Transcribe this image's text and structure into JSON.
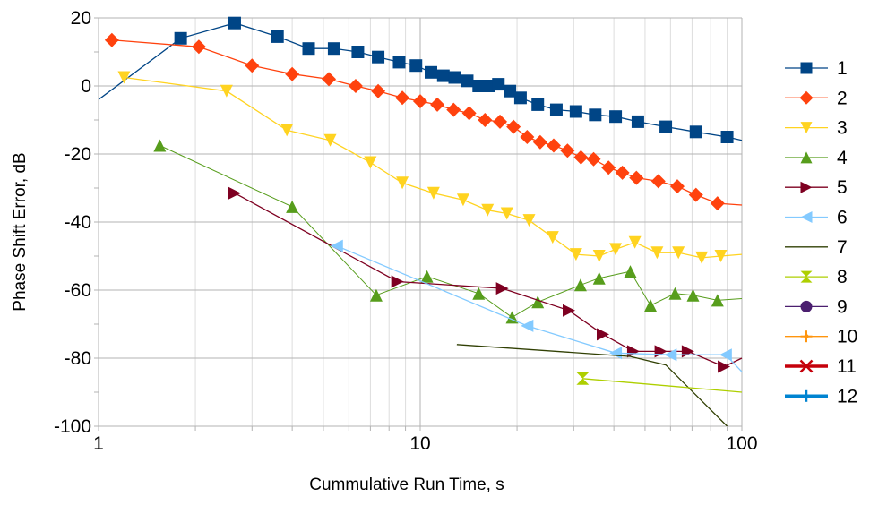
{
  "chart_data": {
    "type": "line",
    "title": "",
    "xlabel": "Cummulative Run Time, s",
    "ylabel": "Phase Shift Error, dB",
    "xscale": "log",
    "xlim": [
      1,
      100
    ],
    "ylim": [
      -100,
      20
    ],
    "xticks": [
      {
        "value": 1,
        "label": "1"
      },
      {
        "value": 10,
        "label": "10"
      },
      {
        "value": 100,
        "label": "100"
      }
    ],
    "yticks": [
      {
        "value": 20,
        "label": "20"
      },
      {
        "value": 0,
        "label": "0"
      },
      {
        "value": -20,
        "label": "-20"
      },
      {
        "value": -40,
        "label": "-40"
      },
      {
        "value": -60,
        "label": "-60"
      },
      {
        "value": -80,
        "label": "-80"
      },
      {
        "value": -100,
        "label": "-100"
      }
    ],
    "grid": true,
    "legend_position": "right",
    "series": [
      {
        "name": "1",
        "color": "#004586",
        "marker": "square",
        "lineWidth": 1.3,
        "x": [
          1.0,
          1.8,
          2.65,
          3.6,
          4.5,
          5.4,
          6.4,
          7.4,
          8.6,
          9.7,
          10.8,
          11.8,
          12.8,
          14.0,
          15.2,
          16.3,
          17.5,
          19.0,
          20.5,
          23.2,
          26.5,
          30.5,
          35.0,
          40.5,
          47.5,
          58.0,
          72.0,
          90.0,
          100.0
        ],
        "y": [
          -4.0,
          14.0,
          18.5,
          14.5,
          11.0,
          11.0,
          10.0,
          8.5,
          7.0,
          6.0,
          4.0,
          3.0,
          2.5,
          1.5,
          0.0,
          0.0,
          0.5,
          -1.5,
          -3.5,
          -5.5,
          -7.0,
          -7.5,
          -8.5,
          -9.0,
          -10.5,
          -12.0,
          -13.5,
          -15.0,
          -16.0
        ]
      },
      {
        "name": "2",
        "color": "#ff420e",
        "marker": "diamond",
        "lineWidth": 1.3,
        "x": [
          1.1,
          2.05,
          3.0,
          4.0,
          5.2,
          6.3,
          7.4,
          8.8,
          10.0,
          11.3,
          12.7,
          14.2,
          15.9,
          17.7,
          19.5,
          21.5,
          23.6,
          26.0,
          28.7,
          31.6,
          34.6,
          38.5,
          42.5,
          47.0,
          55.0,
          63.0,
          72.0,
          84.0,
          100.0
        ],
        "y": [
          13.5,
          11.5,
          6.0,
          3.5,
          2.0,
          0.0,
          -1.5,
          -3.5,
          -4.5,
          -5.5,
          -7.0,
          -8.0,
          -10.0,
          -10.5,
          -12.0,
          -15.0,
          -16.5,
          -17.5,
          -19.0,
          -21.0,
          -21.5,
          -24.0,
          -25.5,
          -27.0,
          -28.0,
          -29.5,
          -32.0,
          -34.5,
          -35.0
        ]
      },
      {
        "name": "3",
        "color": "#ffd320",
        "marker": "triangle-down",
        "lineWidth": 1.3,
        "x": [
          1.2,
          2.5,
          3.85,
          5.25,
          7.0,
          8.8,
          11.0,
          13.6,
          16.2,
          18.6,
          21.8,
          25.8,
          30.5,
          36.0,
          40.5,
          46.5,
          54.5,
          63.5,
          75.0,
          86.0,
          100.0
        ],
        "y": [
          2.5,
          -1.5,
          -13.0,
          -16.0,
          -22.5,
          -28.5,
          -31.5,
          -33.5,
          -36.5,
          -37.5,
          -39.5,
          -44.5,
          -49.5,
          -50.0,
          -48.0,
          -46.0,
          -49.0,
          -49.0,
          -50.5,
          -50.0,
          -49.5
        ]
      },
      {
        "name": "4",
        "color": "#579d1c",
        "marker": "triangle-up",
        "lineWidth": 1.0,
        "x": [
          1.55,
          4.0,
          7.3,
          10.5,
          15.2,
          19.3,
          23.2,
          31.5,
          36.0,
          45.0,
          52.0,
          62.0,
          70.5,
          84.0,
          100.0
        ],
        "y": [
          -17.5,
          -35.5,
          -61.5,
          -56.0,
          -61.0,
          -68.0,
          -63.5,
          -58.5,
          -56.5,
          -54.5,
          -64.5,
          -61.0,
          -61.5,
          -63.0,
          -62.5
        ]
      },
      {
        "name": "5",
        "color": "#7e0021",
        "marker": "triangle-right",
        "lineWidth": 1.3,
        "x": [
          2.65,
          8.5,
          18.0,
          29.0,
          37.0,
          46.0,
          56.0,
          68.0,
          88.0,
          100.0
        ],
        "y": [
          -31.5,
          -57.5,
          -59.5,
          -66.0,
          -73.0,
          -78.0,
          -78.0,
          -78.0,
          -82.5,
          -80.0
        ]
      },
      {
        "name": "6",
        "color": "#83caff",
        "marker": "triangle-left",
        "lineWidth": 1.3,
        "x": [
          5.5,
          21.5,
          40.5,
          60.0,
          89.0,
          100.0
        ],
        "y": [
          -47.0,
          -70.5,
          -78.5,
          -79.0,
          -79.0,
          -84.0
        ]
      },
      {
        "name": "7",
        "color": "#314004",
        "marker": "bowtie",
        "lineWidth": 1.3,
        "x": [
          13.0,
          45.0,
          58.0,
          90.0
        ],
        "y": [
          -76.0,
          -79.5,
          -82.0,
          -100.0
        ]
      },
      {
        "name": "8",
        "color": "#aecf00",
        "marker": "hourglass",
        "lineWidth": 1.3,
        "x": [
          32.0,
          100.0
        ],
        "y": [
          -86.0,
          -90.0
        ]
      },
      {
        "name": "9",
        "color": "#4b1f6f",
        "marker": "circle",
        "lineWidth": 1.3,
        "x": [],
        "y": []
      },
      {
        "name": "10",
        "color": "#ff950e",
        "marker": "star",
        "lineWidth": 1.3,
        "x": [],
        "y": []
      },
      {
        "name": "11",
        "color": "#c5000b",
        "marker": "x",
        "lineWidth": 3.5,
        "x": [],
        "y": []
      },
      {
        "name": "12",
        "color": "#0084d1",
        "marker": "plus",
        "lineWidth": 3.5,
        "x": [],
        "y": []
      }
    ]
  }
}
